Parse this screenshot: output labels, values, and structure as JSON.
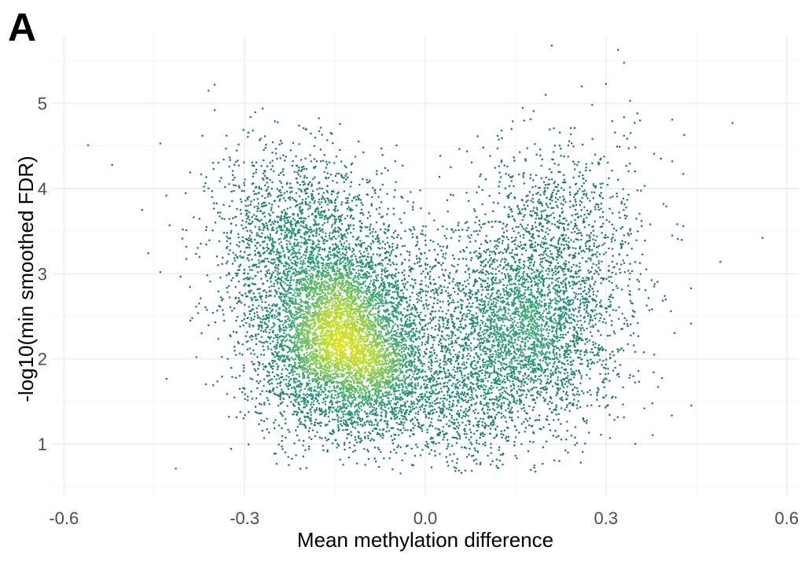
{
  "panel_label": "A",
  "chart_data": {
    "type": "scatter",
    "title": "",
    "xlabel": "Mean methylation difference",
    "ylabel": "-log10(min smoothed FDR)",
    "xlim": [
      -0.62,
      0.62
    ],
    "ylim": [
      0.4,
      5.8
    ],
    "x_ticks": [
      -0.6,
      -0.3,
      0.0,
      0.3,
      0.6
    ],
    "x_tick_labels": [
      "-0.6",
      "-0.3",
      "0.0",
      "0.3",
      "0.6"
    ],
    "y_ticks": [
      1,
      2,
      3,
      4,
      5
    ],
    "y_tick_labels": [
      "1",
      "2",
      "3",
      "4",
      "5"
    ],
    "grid": true,
    "legend": "none",
    "color_encoding": "point density (viridis: dark teal to yellow)",
    "colors": {
      "low_density": "#1f6e73",
      "mid_density": "#3ea876",
      "high_density": "#dce31c"
    },
    "clusters": [
      {
        "center_x": -0.14,
        "center_y": 2.25,
        "sd_x": 0.07,
        "sd_y": 0.55,
        "count": 5200
      },
      {
        "center_x": -0.22,
        "center_y": 3.4,
        "sd_x": 0.07,
        "sd_y": 0.55,
        "count": 1600
      },
      {
        "center_x": 0.16,
        "center_y": 2.3,
        "sd_x": 0.075,
        "sd_y": 0.55,
        "count": 3000
      },
      {
        "center_x": 0.23,
        "center_y": 3.5,
        "sd_x": 0.07,
        "sd_y": 0.55,
        "count": 900
      },
      {
        "center_x": -0.04,
        "center_y": 1.7,
        "sd_x": 0.07,
        "sd_y": 0.35,
        "count": 900
      },
      {
        "center_x": 0.05,
        "center_y": 1.3,
        "sd_x": 0.06,
        "sd_y": 0.3,
        "count": 350
      },
      {
        "center_x": -0.01,
        "center_y": 3.0,
        "sd_x": 0.08,
        "sd_y": 0.6,
        "count": 400
      }
    ],
    "outlier_points": [
      {
        "x": -0.56,
        "y": 4.51
      },
      {
        "x": -0.52,
        "y": 4.28
      },
      {
        "x": -0.47,
        "y": 3.75
      },
      {
        "x": -0.46,
        "y": 3.24
      },
      {
        "x": -0.44,
        "y": 4.53
      },
      {
        "x": -0.43,
        "y": 3.92
      },
      {
        "x": -0.44,
        "y": 3.02
      },
      {
        "x": -0.35,
        "y": 5.22
      },
      {
        "x": -0.36,
        "y": 5.15
      },
      {
        "x": -0.35,
        "y": 4.92
      },
      {
        "x": -0.37,
        "y": 4.62
      },
      {
        "x": -0.27,
        "y": 4.94
      },
      {
        "x": -0.29,
        "y": 4.84
      },
      {
        "x": -0.31,
        "y": 4.52
      },
      {
        "x": -0.24,
        "y": 4.56
      },
      {
        "x": -0.21,
        "y": 1.28
      },
      {
        "x": -0.17,
        "y": 0.98
      },
      {
        "x": -0.02,
        "y": 0.75
      },
      {
        "x": 0.06,
        "y": 0.66
      },
      {
        "x": 0.12,
        "y": 0.72
      },
      {
        "x": 0.12,
        "y": 4.62
      },
      {
        "x": 0.18,
        "y": 4.91
      },
      {
        "x": 0.2,
        "y": 5.1
      },
      {
        "x": 0.21,
        "y": 5.68
      },
      {
        "x": 0.26,
        "y": 5.2
      },
      {
        "x": 0.3,
        "y": 5.23
      },
      {
        "x": 0.32,
        "y": 5.63
      },
      {
        "x": 0.33,
        "y": 5.48
      },
      {
        "x": 0.34,
        "y": 5.03
      },
      {
        "x": 0.33,
        "y": 4.62
      },
      {
        "x": 0.38,
        "y": 4.41
      },
      {
        "x": 0.41,
        "y": 4.81
      },
      {
        "x": 0.43,
        "y": 4.63
      },
      {
        "x": 0.41,
        "y": 4.32
      },
      {
        "x": 0.4,
        "y": 3.79
      },
      {
        "x": 0.38,
        "y": 2.85
      },
      {
        "x": 0.38,
        "y": 2.05
      },
      {
        "x": 0.3,
        "y": 1.57
      },
      {
        "x": 0.49,
        "y": 3.14
      },
      {
        "x": 0.51,
        "y": 4.77
      },
      {
        "x": 0.56,
        "y": 3.42
      },
      {
        "x": 0.34,
        "y": 1.81
      },
      {
        "x": -0.38,
        "y": 2.02
      },
      {
        "x": -0.39,
        "y": 2.45
      },
      {
        "x": -0.3,
        "y": 1.65
      }
    ]
  }
}
